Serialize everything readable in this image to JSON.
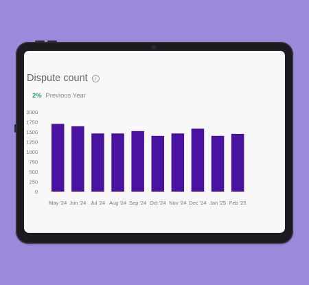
{
  "card": {
    "title": "Dispute count",
    "change_percent": "2%",
    "change_label": "Previous Year"
  },
  "icons": {
    "info": "info-icon"
  },
  "colors": {
    "background": "#9d89dc",
    "bar": "#4a12a1",
    "change": "#2f9d6e"
  },
  "chart_data": {
    "type": "bar",
    "title": "Dispute count",
    "xlabel": "",
    "ylabel": "",
    "categories": [
      "May '24",
      "Jun '24",
      "Jul '24",
      "Aug '24",
      "Sep '24",
      "Oct '24",
      "Nov '24",
      "Dec '24",
      "Jan '25",
      "Feb '25"
    ],
    "values": [
      1700,
      1640,
      1460,
      1460,
      1520,
      1400,
      1460,
      1580,
      1400,
      1450
    ],
    "yticks": [
      0,
      250,
      500,
      750,
      1000,
      1250,
      1500,
      1750,
      2000
    ],
    "ylim": [
      0,
      2000
    ],
    "grid": false,
    "legend": "none"
  }
}
